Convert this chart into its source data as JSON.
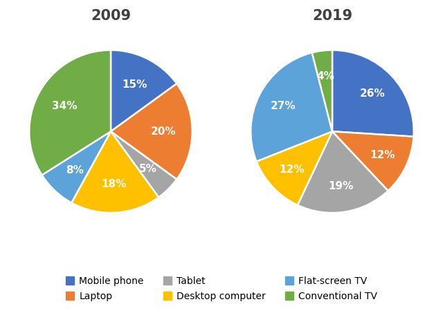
{
  "year1": "2009",
  "year2": "2019",
  "categories": [
    "Mobile phone",
    "Laptop",
    "Tablet",
    "Desktop computer",
    "Flat-screen TV",
    "Conventional TV"
  ],
  "colors": [
    "#4472C4",
    "#ED7D31",
    "#A5A5A5",
    "#FFC000",
    "#5BA3D9",
    "#70AD47"
  ],
  "values_2009": [
    15,
    20,
    5,
    18,
    8,
    34
  ],
  "values_2019": [
    26,
    12,
    19,
    12,
    27,
    4
  ],
  "startangle_2009": 90,
  "startangle_2019": 90,
  "background_color": "#FFFFFF",
  "title_fontsize": 15,
  "label_fontsize": 11,
  "legend_fontsize": 10,
  "title_color": "#404040",
  "label_color": "#FFFFFF"
}
